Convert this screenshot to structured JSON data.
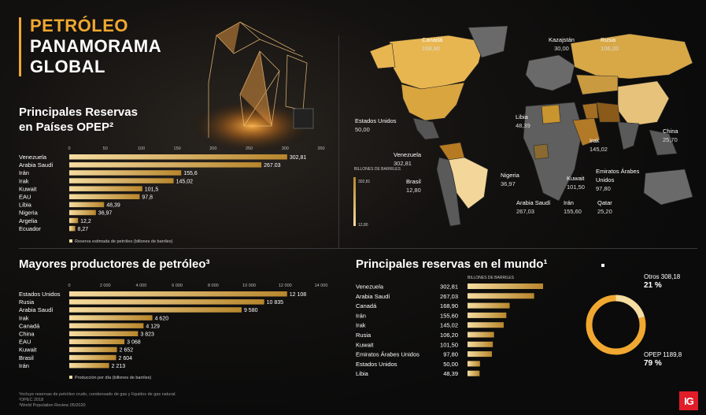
{
  "header": {
    "line1": "PETRÓLEO",
    "line2": "PANAMORAMA",
    "line3": "GLOBAL"
  },
  "colors": {
    "accent": "#f0a830",
    "bar_light": "#f5dca0",
    "bar_dark": "#b8862c",
    "brand": "#e11d2a"
  },
  "chart_data": [
    {
      "type": "bar",
      "orientation": "horizontal",
      "title": "Principales Reservas en Países OPEP²",
      "categories": [
        "Venezuela",
        "Arabia Saudí",
        "Irán",
        "Irak",
        "Kuwait",
        "EAU",
        "Libia",
        "Nigeria",
        "Argelia",
        "Ecuador"
      ],
      "values": [
        302.81,
        267.03,
        155.6,
        145.02,
        101.5,
        97.8,
        48.39,
        36.97,
        12.2,
        8.27
      ],
      "value_labels": [
        "302,81",
        "267.03",
        "155,6",
        "145,02",
        "101,5",
        "97,8",
        "48,39",
        "36,97",
        "12,2",
        "8,27"
      ],
      "xlim": [
        0,
        350
      ],
      "ticks": [
        "0",
        "50",
        "100",
        "150",
        "200",
        "250",
        "300",
        "350"
      ],
      "legend": "Reserva estimada de petróleo (billones de barriles)"
    },
    {
      "type": "bar",
      "orientation": "horizontal",
      "title": "Mayores productores de petróleo³",
      "categories": [
        "Estados Unidos",
        "Rusia",
        "Arabia Saudí",
        "Irak",
        "Canadá",
        "China",
        "EAU",
        "Kuwait",
        "Brasil",
        "Irán"
      ],
      "values": [
        12108,
        10835,
        9580,
        4620,
        4129,
        3823,
        3068,
        2652,
        2604,
        2213
      ],
      "value_labels": [
        "12 108",
        "10 835",
        "9 580",
        "4 620",
        "4 129",
        "3 823",
        "3 068",
        "2 652",
        "2 604",
        "2 213"
      ],
      "xlim": [
        0,
        14000
      ],
      "ticks": [
        "0",
        "2 000",
        "4 000",
        "6 000",
        "8 000",
        "10 000",
        "12 000",
        "14 000"
      ],
      "legend": "Producción por día (billones de barriles)"
    },
    {
      "type": "bar",
      "orientation": "horizontal",
      "title": "Principales reservas en el mundo¹",
      "unit_label": "BILLONES DE BARRILES",
      "categories": [
        "Venezuela",
        "Arabia Saudí",
        "Canadá",
        "Irán",
        "Irak",
        "Rusia",
        "Kuwait",
        "Emiratos Árabes Unidos",
        "Estados Unidos",
        "Libia"
      ],
      "values": [
        302.81,
        267.03,
        168.9,
        155.6,
        145.02,
        106.2,
        101.5,
        97.8,
        50.0,
        48.39
      ],
      "value_labels": [
        "302,81",
        "267,03",
        "168,90",
        "155,60",
        "145,02",
        "106,20",
        "101,50",
        "97,80",
        "50,00",
        "48,39"
      ]
    },
    {
      "type": "pie",
      "slices": [
        {
          "label": "Otros 308,18",
          "percent": "21 %",
          "value": 308.18
        },
        {
          "label": "OPEP 1189,8",
          "percent": "79 %",
          "value": 1189.8
        }
      ]
    }
  ],
  "map": {
    "scale": {
      "title": "BILLONES DE BARRILES",
      "max": "302,81",
      "min": "12,80"
    },
    "labels": [
      {
        "name": "Canadá",
        "value": "168,90"
      },
      {
        "name": "Kazajstán",
        "value": "30,00"
      },
      {
        "name": "Rusia",
        "value": "106,20"
      },
      {
        "name": "Estados Unidos",
        "value": "50,00"
      },
      {
        "name": "Libia",
        "value": "48,39"
      },
      {
        "name": "Irak",
        "value": "145,02"
      },
      {
        "name": "China",
        "value": "25,70"
      },
      {
        "name": "Venezuela",
        "value": "302,81"
      },
      {
        "name": "Brasil",
        "value": "12,80"
      },
      {
        "name": "Nigeria",
        "value": "36,97"
      },
      {
        "name": "Kuwait",
        "value": "101,50"
      },
      {
        "name": "Emiratos Árabes Unidos",
        "value": "97,80"
      },
      {
        "name": "Arabia Saudí",
        "value": "267,03"
      },
      {
        "name": "Irán",
        "value": "155,60"
      },
      {
        "name": "Qatar",
        "value": "25,20"
      }
    ]
  },
  "footnotes": [
    "¹Incluye reservas de petróleo crudo, condensado de gas y líquidos de gas natural.",
    "²OPEC 2018",
    "³World Population Review 05/2020"
  ],
  "logo": "IG"
}
